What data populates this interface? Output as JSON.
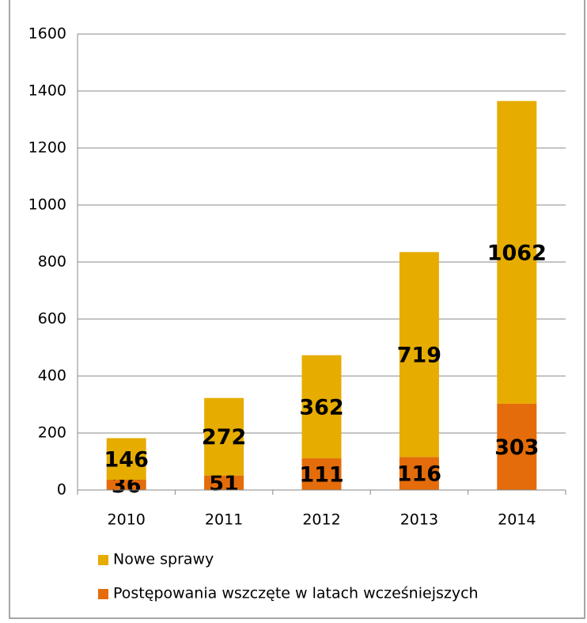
{
  "chart_data": {
    "type": "stacked_bar",
    "categories": [
      "2010",
      "2011",
      "2012",
      "2013",
      "2014"
    ],
    "series": [
      {
        "name": "Nowe sprawy",
        "color": "#e6ac00",
        "values": [
          146,
          272,
          362,
          719,
          1062
        ]
      },
      {
        "name": "Postępowania wszczęte w latach wcześniejszych",
        "color": "#e46c0a",
        "values": [
          36,
          51,
          111,
          116,
          303
        ]
      }
    ],
    "ylim": [
      0,
      1600
    ],
    "yticks": [
      0,
      200,
      400,
      600,
      800,
      1000,
      1200,
      1400,
      1600
    ],
    "grid": true,
    "legend": "bottom"
  }
}
